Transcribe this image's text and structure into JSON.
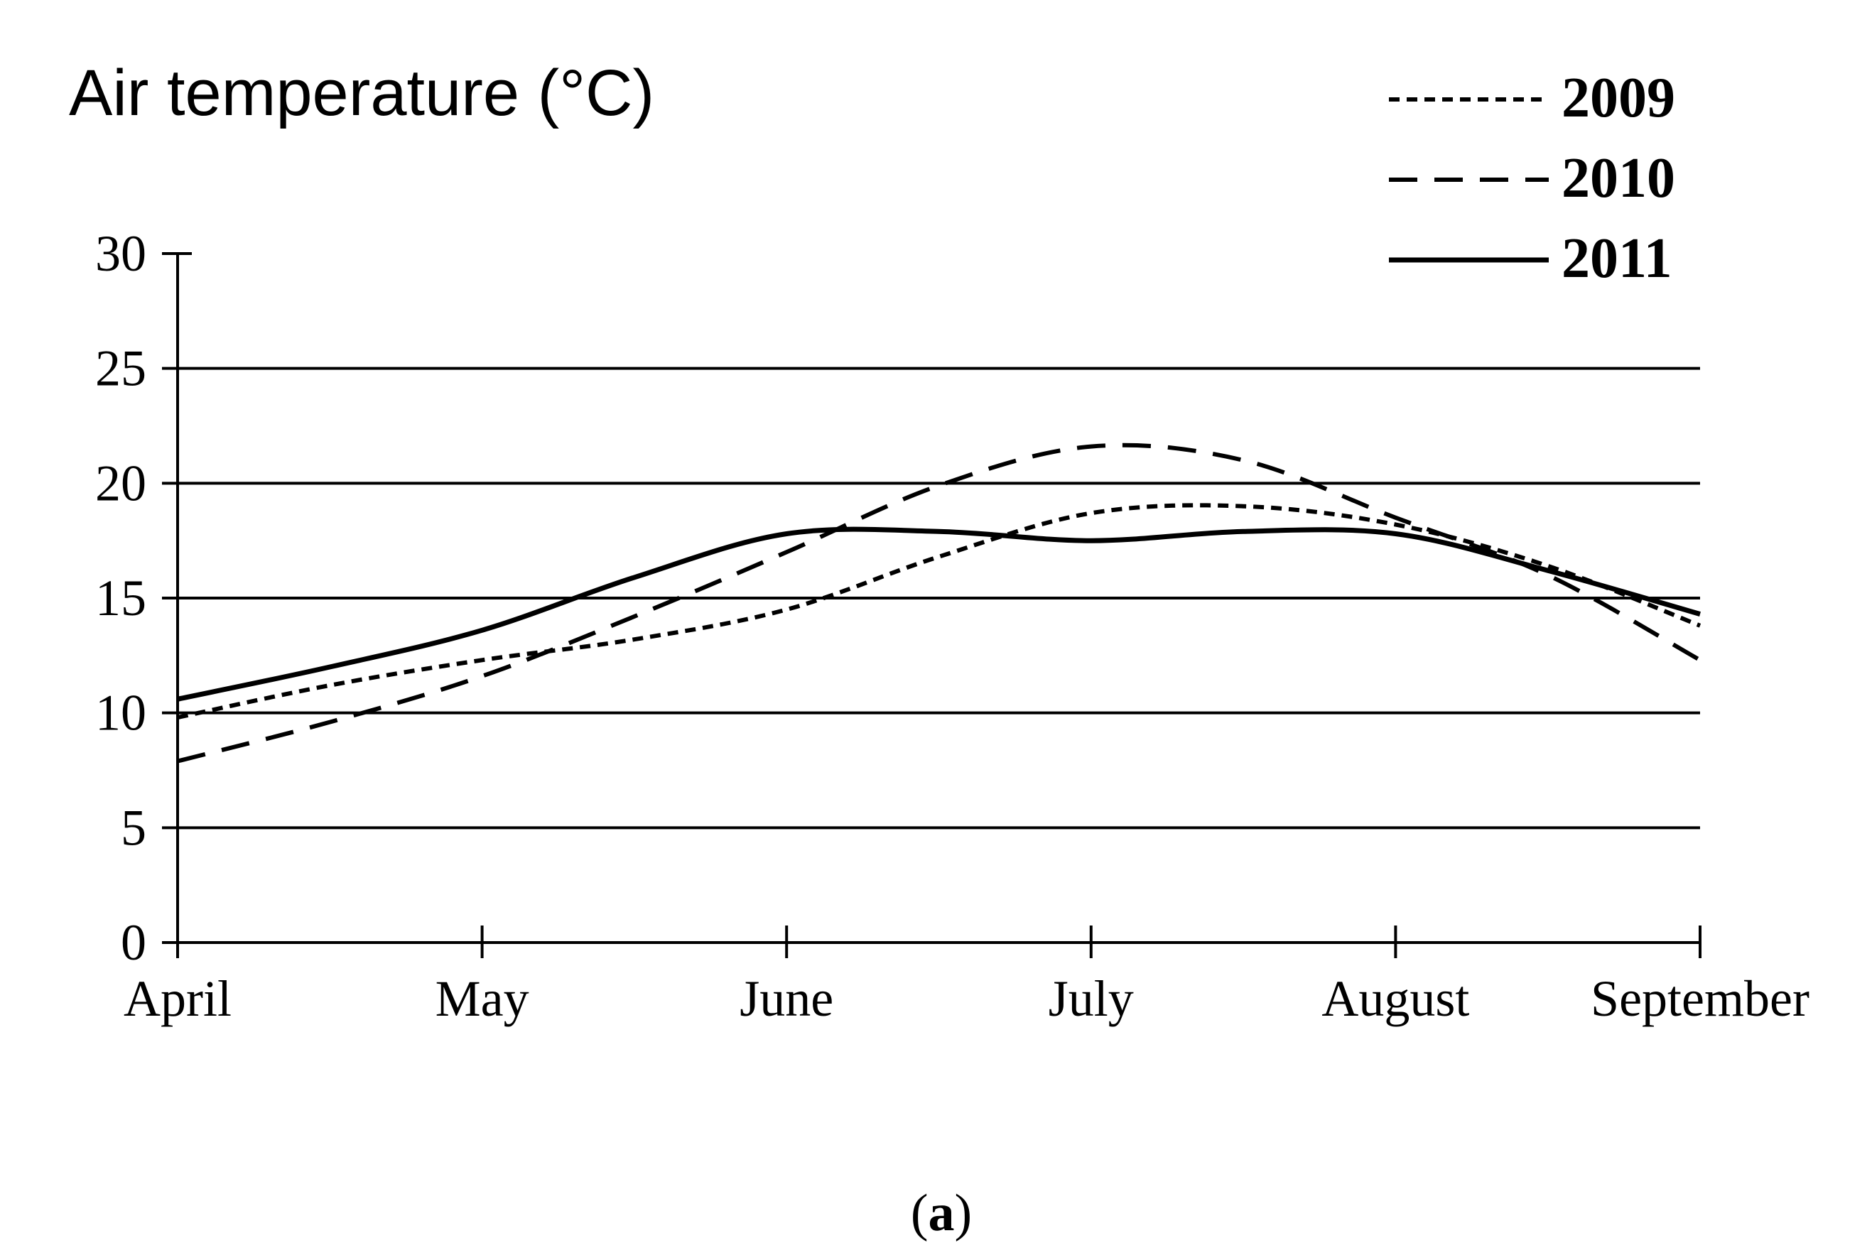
{
  "chart_data": {
    "type": "line",
    "title": "Air temperature  (°C)",
    "xlabel": "",
    "ylabel": "",
    "categories": [
      "April",
      "May",
      "June",
      "July",
      "August",
      "September"
    ],
    "yticks": [
      "0",
      "5",
      "10",
      "15",
      "20",
      "25",
      "30"
    ],
    "ylim": [
      0,
      30
    ],
    "grid": true,
    "legend_position": "top-right",
    "series": [
      {
        "name": "2009",
        "style": "dotted",
        "color": "#000000",
        "x": [
          0,
          0.5,
          1,
          1.5,
          2,
          2.5,
          3,
          3.5,
          4,
          4.5,
          5
        ],
        "values": [
          9.8,
          11.2,
          12.3,
          13.2,
          14.5,
          16.8,
          18.7,
          19.0,
          18.2,
          16.4,
          13.8
        ]
      },
      {
        "name": "2010",
        "style": "dashed",
        "color": "#000000",
        "x": [
          0,
          0.5,
          1,
          1.5,
          2,
          2.5,
          3,
          3.5,
          4,
          4.5,
          5
        ],
        "values": [
          7.9,
          9.6,
          11.6,
          14.2,
          17.0,
          19.9,
          21.6,
          21.0,
          18.5,
          16.0,
          12.3
        ]
      },
      {
        "name": "2011",
        "style": "solid",
        "color": "#000000",
        "x": [
          0,
          0.5,
          1,
          1.5,
          2,
          2.5,
          3,
          3.5,
          4,
          4.5,
          5
        ],
        "values": [
          10.6,
          12.0,
          13.6,
          15.9,
          17.8,
          17.9,
          17.5,
          17.9,
          17.8,
          16.2,
          14.3
        ]
      }
    ],
    "caption": "(a)",
    "caption_letter": "a"
  }
}
